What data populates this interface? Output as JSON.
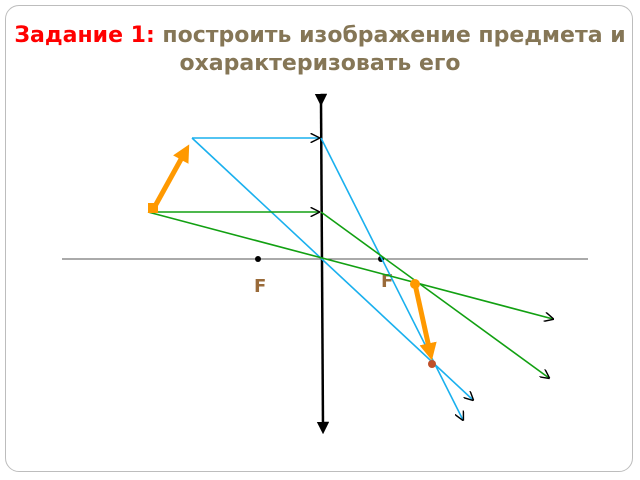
{
  "title": {
    "lead": "Задание 1:",
    "rest": "построить изображение предмета и охарактеризовать его"
  },
  "labels": {
    "focus_left": "F",
    "focus_right": "F"
  },
  "colors": {
    "title_lead": "#ff0000",
    "title_text": "#857656",
    "ray_blue": "#1ab0ee",
    "ray_green": "#12a012",
    "object": "#ff9900",
    "lens": "#000000",
    "axis": "#555555",
    "focus_label": "#9a6b3a"
  },
  "diagram": {
    "lens_type": "converging",
    "object_orientation": "upright",
    "image_orientation": "inverted"
  }
}
